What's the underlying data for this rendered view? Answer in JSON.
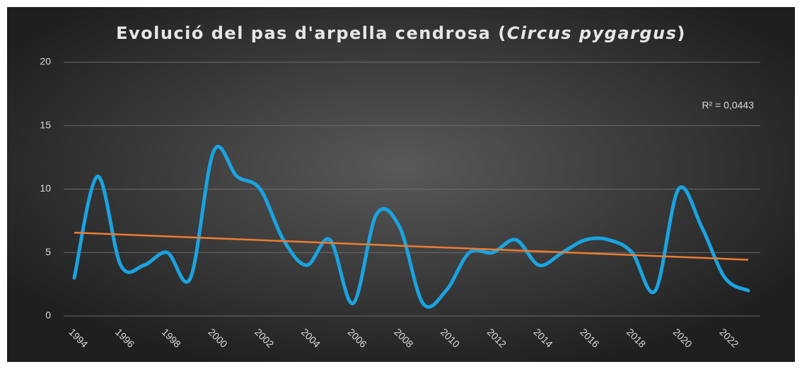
{
  "chart_data": {
    "type": "line",
    "title": [
      "Evolució del pas d'arpella cendrosa (",
      "Circus pygargus",
      ")"
    ],
    "x": [
      1994,
      1995,
      1996,
      1997,
      1998,
      1999,
      2000,
      2001,
      2002,
      2003,
      2004,
      2005,
      2006,
      2007,
      2008,
      2009,
      2010,
      2011,
      2012,
      2013,
      2014,
      2015,
      2016,
      2017,
      2018,
      2019,
      2020,
      2021,
      2022,
      2023
    ],
    "series": [
      {
        "color": "#1aa3e0",
        "values": [
          3,
          11,
          4,
          4,
          5,
          3,
          13,
          11,
          10,
          6,
          4,
          6,
          1,
          8,
          7,
          1,
          2,
          5,
          5,
          6,
          4,
          5,
          6,
          6,
          5,
          2,
          10,
          7,
          3,
          2
        ]
      }
    ],
    "xlim": [
      1994,
      2023
    ],
    "xticks": [
      1994,
      1996,
      1998,
      2000,
      2002,
      2004,
      2006,
      2008,
      2010,
      2012,
      2014,
      2016,
      2018,
      2020,
      2022
    ],
    "ylim": [
      0,
      20
    ],
    "yticks": [
      0,
      5,
      10,
      15,
      20
    ],
    "grid": true,
    "trendline": {
      "color": "#ed7d31",
      "annotation": "R² = 0,0443"
    }
  }
}
